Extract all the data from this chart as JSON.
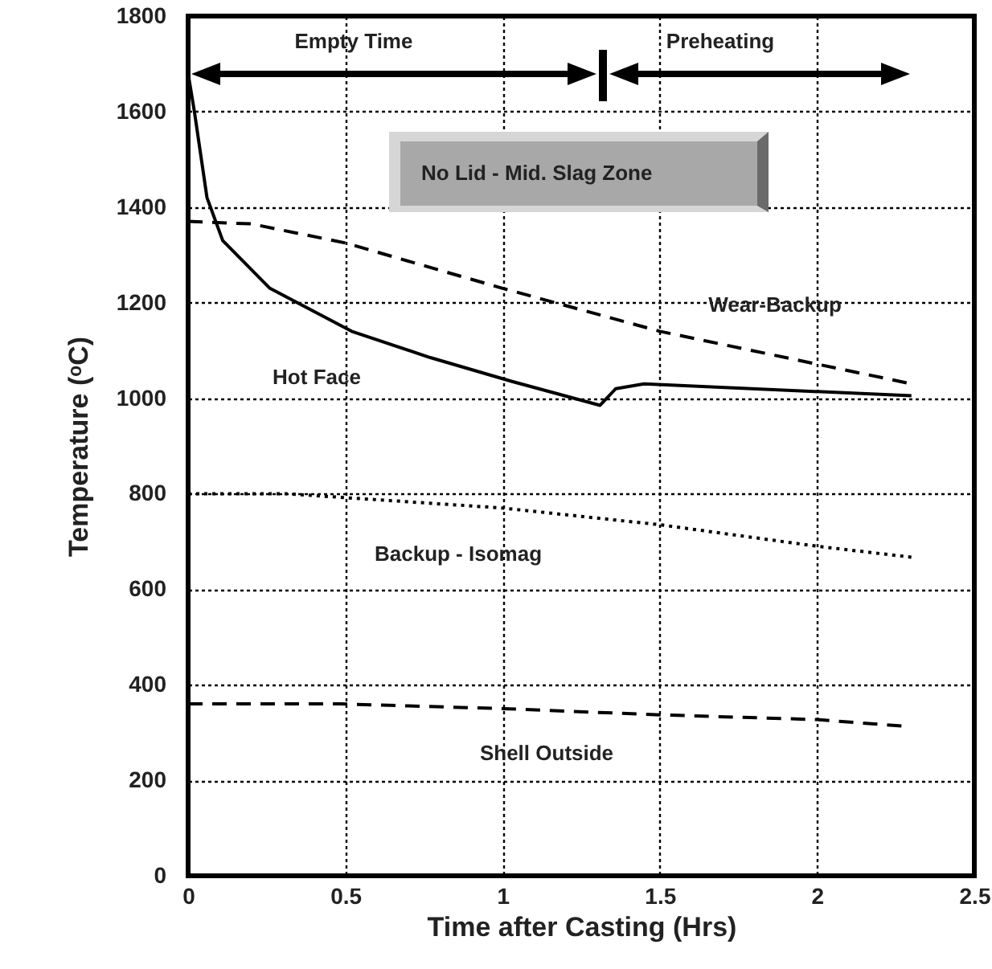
{
  "chart_data": {
    "type": "line",
    "xlabel": "Time after Casting (Hrs)",
    "ylabel": "Temperature (ᵒC)",
    "xlim": [
      0,
      2.5
    ],
    "xticks": [
      0,
      0.5,
      1,
      1.5,
      2,
      2.5
    ],
    "ylim": [
      0,
      1800
    ],
    "yticks": [
      0,
      200,
      400,
      600,
      800,
      1000,
      1200,
      1400,
      1600,
      1800
    ],
    "grid": true,
    "series": [
      {
        "name": "Hot Face",
        "color": "#000000",
        "line_style": "solid",
        "x": [
          0,
          0.02,
          0.06,
          0.11,
          0.26,
          0.52,
          0.77,
          1.03,
          1.31,
          1.36,
          1.45,
          2.3
        ],
        "values": [
          1680,
          1600,
          1420,
          1330,
          1230,
          1140,
          1085,
          1035,
          985,
          1020,
          1030,
          1005
        ]
      },
      {
        "name": "Wear-Backup",
        "color": "#000000",
        "line_style": "dashed",
        "x": [
          0,
          0.2,
          0.5,
          1.0,
          1.5,
          2.3
        ],
        "values": [
          1370,
          1365,
          1325,
          1230,
          1140,
          1030
        ]
      },
      {
        "name": "Backup - Isomag",
        "color": "#000000",
        "line_style": "dotted",
        "x": [
          0,
          0.31,
          1.0,
          1.5,
          2.0,
          2.3
        ],
        "values": [
          800,
          800,
          770,
          735,
          690,
          667
        ]
      },
      {
        "name": "Shell Outside",
        "color": "#000000",
        "line_style": "dashed",
        "x": [
          0,
          0.48,
          1.0,
          1.5,
          2.0,
          2.28
        ],
        "values": [
          360,
          360,
          350,
          337,
          327,
          313
        ]
      }
    ],
    "annotations": [
      "Empty Time",
      "Preheating",
      "No Lid - Mid. Slag Zone"
    ]
  }
}
